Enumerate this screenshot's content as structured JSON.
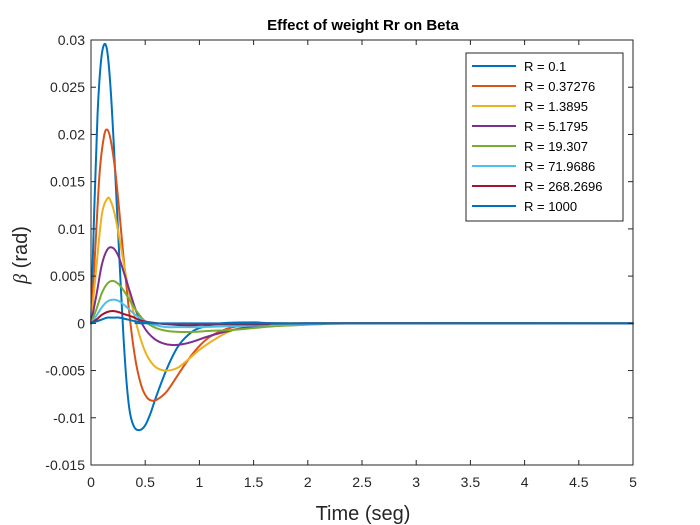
{
  "chart_data": {
    "type": "line",
    "title": "Effect of weight Rr on Beta",
    "xlabel": "Time (seg)",
    "ylabel_symbol": "β",
    "ylabel_unit": "(rad)",
    "xlim": [
      0,
      5
    ],
    "ylim": [
      -0.015,
      0.03
    ],
    "xticks": [
      0,
      0.5,
      1,
      1.5,
      2,
      2.5,
      3,
      3.5,
      4,
      4.5,
      5
    ],
    "xtick_labels": [
      "0",
      "0.5",
      "1",
      "1.5",
      "2",
      "2.5",
      "3",
      "3.5",
      "4",
      "4.5",
      "5"
    ],
    "yticks": [
      -0.015,
      -0.01,
      -0.005,
      0,
      0.005,
      0.01,
      0.015,
      0.02,
      0.025,
      0.03
    ],
    "ytick_labels": [
      "-0.015",
      "-0.01",
      "-0.005",
      "0",
      "0.005",
      "0.01",
      "0.015",
      "0.02",
      "0.025",
      "0.03"
    ],
    "grid": false,
    "legend_position": "top-right",
    "series": [
      {
        "name": "R = 0.1",
        "color": "#0072BD",
        "points": [
          [
            0,
            0
          ],
          [
            0.03,
            0.012
          ],
          [
            0.06,
            0.022
          ],
          [
            0.09,
            0.0275
          ],
          [
            0.12,
            0.0295
          ],
          [
            0.15,
            0.0288
          ],
          [
            0.18,
            0.025
          ],
          [
            0.21,
            0.019
          ],
          [
            0.24,
            0.012
          ],
          [
            0.27,
            0.005
          ],
          [
            0.3,
            -0.0015
          ],
          [
            0.33,
            -0.0065
          ],
          [
            0.36,
            -0.0095
          ],
          [
            0.4,
            -0.011
          ],
          [
            0.45,
            -0.0113
          ],
          [
            0.5,
            -0.0108
          ],
          [
            0.55,
            -0.0095
          ],
          [
            0.6,
            -0.0078
          ],
          [
            0.7,
            -0.0048
          ],
          [
            0.8,
            -0.0025
          ],
          [
            0.9,
            -0.0012
          ],
          [
            1.0,
            -0.0005
          ],
          [
            1.2,
            0.0
          ],
          [
            1.5,
            0.0001
          ],
          [
            2.0,
            0.0
          ],
          [
            5.0,
            0.0
          ]
        ]
      },
      {
        "name": "R = 0.37276",
        "color": "#D95319",
        "points": [
          [
            0,
            0
          ],
          [
            0.04,
            0.008
          ],
          [
            0.08,
            0.016
          ],
          [
            0.12,
            0.0198
          ],
          [
            0.15,
            0.0205
          ],
          [
            0.18,
            0.0195
          ],
          [
            0.22,
            0.0165
          ],
          [
            0.26,
            0.012
          ],
          [
            0.3,
            0.007
          ],
          [
            0.34,
            0.0025
          ],
          [
            0.38,
            -0.0015
          ],
          [
            0.42,
            -0.0045
          ],
          [
            0.47,
            -0.0068
          ],
          [
            0.52,
            -0.0079
          ],
          [
            0.57,
            -0.0082
          ],
          [
            0.62,
            -0.008
          ],
          [
            0.7,
            -0.0072
          ],
          [
            0.8,
            -0.0055
          ],
          [
            0.9,
            -0.0038
          ],
          [
            1.0,
            -0.0024
          ],
          [
            1.1,
            -0.0014
          ],
          [
            1.25,
            -0.0006
          ],
          [
            1.4,
            -0.0002
          ],
          [
            1.6,
            0.0
          ],
          [
            2.0,
            0.0
          ],
          [
            5.0,
            0.0
          ]
        ]
      },
      {
        "name": "R = 1.3895",
        "color": "#EDB120",
        "points": [
          [
            0,
            0
          ],
          [
            0.05,
            0.006
          ],
          [
            0.1,
            0.0115
          ],
          [
            0.15,
            0.0132
          ],
          [
            0.18,
            0.013
          ],
          [
            0.22,
            0.0115
          ],
          [
            0.27,
            0.0085
          ],
          [
            0.32,
            0.0052
          ],
          [
            0.38,
            0.0018
          ],
          [
            0.44,
            -0.001
          ],
          [
            0.5,
            -0.003
          ],
          [
            0.56,
            -0.0042
          ],
          [
            0.62,
            -0.0048
          ],
          [
            0.7,
            -0.005
          ],
          [
            0.8,
            -0.0047
          ],
          [
            0.9,
            -0.0038
          ],
          [
            1.0,
            -0.0028
          ],
          [
            1.1,
            -0.002
          ],
          [
            1.25,
            -0.001
          ],
          [
            1.4,
            -0.0004
          ],
          [
            1.6,
            -0.0001
          ],
          [
            1.8,
            0.0
          ],
          [
            2.2,
            0.0
          ],
          [
            5.0,
            0.0
          ]
        ]
      },
      {
        "name": "R = 5.1795",
        "color": "#7E2F8E",
        "points": [
          [
            0,
            0
          ],
          [
            0.05,
            0.003
          ],
          [
            0.1,
            0.0062
          ],
          [
            0.15,
            0.0078
          ],
          [
            0.2,
            0.008
          ],
          [
            0.25,
            0.0072
          ],
          [
            0.3,
            0.0055
          ],
          [
            0.36,
            0.0033
          ],
          [
            0.42,
            0.0012
          ],
          [
            0.5,
            -0.0006
          ],
          [
            0.58,
            -0.0016
          ],
          [
            0.66,
            -0.0021
          ],
          [
            0.75,
            -0.0023
          ],
          [
            0.85,
            -0.0022
          ],
          [
            0.95,
            -0.0019
          ],
          [
            1.05,
            -0.0015
          ],
          [
            1.2,
            -0.001
          ],
          [
            1.4,
            -0.0005
          ],
          [
            1.6,
            -0.0002
          ],
          [
            1.8,
            -0.0001
          ],
          [
            2.0,
            0.0
          ],
          [
            5.0,
            0.0
          ]
        ]
      },
      {
        "name": "R = 19.307",
        "color": "#77AC30",
        "points": [
          [
            0,
            0
          ],
          [
            0.05,
            0.0015
          ],
          [
            0.1,
            0.0032
          ],
          [
            0.15,
            0.0042
          ],
          [
            0.2,
            0.0045
          ],
          [
            0.25,
            0.0042
          ],
          [
            0.3,
            0.0035
          ],
          [
            0.36,
            0.0024
          ],
          [
            0.42,
            0.0013
          ],
          [
            0.5,
            0.0002
          ],
          [
            0.6,
            -0.0005
          ],
          [
            0.7,
            -0.0008
          ],
          [
            0.8,
            -0.0009
          ],
          [
            0.95,
            -0.0009
          ],
          [
            1.1,
            -0.0008
          ],
          [
            1.3,
            -0.0007
          ],
          [
            1.5,
            -0.0005
          ],
          [
            1.7,
            -0.0003
          ],
          [
            1.9,
            -0.0002
          ],
          [
            2.1,
            -0.0001
          ],
          [
            2.5,
            0.0
          ],
          [
            5.0,
            0.0
          ]
        ]
      },
      {
        "name": "R = 71.9686",
        "color": "#4DBEEE",
        "points": [
          [
            0,
            0
          ],
          [
            0.05,
            0.0008
          ],
          [
            0.1,
            0.0017
          ],
          [
            0.15,
            0.0023
          ],
          [
            0.2,
            0.0025
          ],
          [
            0.25,
            0.0024
          ],
          [
            0.3,
            0.002
          ],
          [
            0.36,
            0.0014
          ],
          [
            0.42,
            0.0008
          ],
          [
            0.5,
            0.0002
          ],
          [
            0.6,
            -0.0002
          ],
          [
            0.7,
            -0.0004
          ],
          [
            0.85,
            -0.0004
          ],
          [
            1.0,
            -0.0004
          ],
          [
            1.3,
            -0.0003
          ],
          [
            1.6,
            -0.0002
          ],
          [
            2.0,
            -0.0001
          ],
          [
            2.5,
            0.0
          ],
          [
            5.0,
            0.0
          ]
        ]
      },
      {
        "name": "R = 268.2696",
        "color": "#A2142F",
        "points": [
          [
            0,
            0
          ],
          [
            0.05,
            0.0004
          ],
          [
            0.1,
            0.0009
          ],
          [
            0.15,
            0.0012
          ],
          [
            0.2,
            0.0013
          ],
          [
            0.25,
            0.0012
          ],
          [
            0.3,
            0.001
          ],
          [
            0.38,
            0.0007
          ],
          [
            0.46,
            0.0003
          ],
          [
            0.55,
            0.0001
          ],
          [
            0.7,
            -0.0001
          ],
          [
            0.9,
            -0.0002
          ],
          [
            1.2,
            -0.0001
          ],
          [
            1.6,
            -0.0001
          ],
          [
            2.0,
            0.0
          ],
          [
            5.0,
            0.0
          ]
        ]
      },
      {
        "name": "R = 1000",
        "color": "#0072BD",
        "points": [
          [
            0,
            0
          ],
          [
            0.05,
            0.0002
          ],
          [
            0.1,
            0.0004
          ],
          [
            0.15,
            0.0006
          ],
          [
            0.2,
            0.0006
          ],
          [
            0.26,
            0.0006
          ],
          [
            0.34,
            0.0004
          ],
          [
            0.42,
            0.0002
          ],
          [
            0.55,
            0.0001
          ],
          [
            0.8,
            0.0
          ],
          [
            5.0,
            0.0
          ]
        ]
      }
    ]
  }
}
